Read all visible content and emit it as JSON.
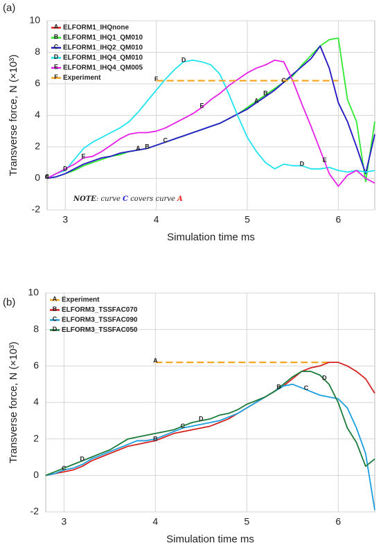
{
  "chart_data": [
    {
      "type": "line",
      "label": "(a)",
      "x_label": "Simulation time ms",
      "y_label": "Transverse force, N (×10³)",
      "xlim": [
        2.8,
        6.4
      ],
      "ylim": [
        -2,
        10
      ],
      "xticks": [
        3,
        4,
        5,
        6
      ],
      "yticks": [
        -2,
        0,
        2,
        4,
        6,
        8,
        10
      ],
      "grid": true,
      "legend": "upper left",
      "note": [
        "NOTE",
        ": curve ",
        "C",
        " covers curve ",
        "A"
      ],
      "x": [
        2.8,
        2.9,
        3.0,
        3.1,
        3.2,
        3.3,
        3.4,
        3.5,
        3.6,
        3.7,
        3.8,
        3.9,
        4.0,
        4.1,
        4.2,
        4.3,
        4.4,
        4.5,
        4.6,
        4.7,
        4.8,
        4.9,
        5.0,
        5.1,
        5.2,
        5.3,
        5.4,
        5.5,
        5.6,
        5.7,
        5.8,
        5.9,
        6.0,
        6.1,
        6.2,
        6.3,
        6.4
      ],
      "series": [
        {
          "name": "ELFORM1_IHQnone",
          "marker": "A",
          "color": "#e8231f",
          "marker_x": [
            2.8,
            3.8,
            5.1
          ],
          "values": [
            0,
            0.1,
            0.3,
            0.6,
            0.9,
            1.1,
            1.3,
            1.4,
            1.6,
            1.7,
            1.8,
            1.9,
            2.1,
            2.3,
            2.5,
            2.7,
            2.9,
            3.1,
            3.3,
            3.5,
            3.8,
            4.1,
            4.4,
            4.8,
            5.2,
            5.6,
            6.1,
            6.6,
            7.1,
            7.6,
            8.4,
            7.0,
            4.8,
            3.6,
            2.0,
            0.3,
            2.8
          ]
        },
        {
          "name": "ELFORM1_IHQ1_QM010",
          "marker": "B",
          "color": "#2ee82e",
          "marker_x": [
            3.9,
            5.2
          ],
          "values": [
            0,
            0.1,
            0.3,
            0.5,
            0.8,
            1.0,
            1.2,
            1.4,
            1.5,
            1.7,
            1.8,
            1.9,
            2.1,
            2.3,
            2.5,
            2.7,
            2.9,
            3.1,
            3.3,
            3.5,
            3.8,
            4.1,
            4.5,
            4.9,
            5.3,
            5.7,
            6.1,
            6.5,
            7.2,
            7.8,
            8.4,
            8.8,
            8.9,
            5.0,
            3.6,
            -0.2,
            3.6
          ]
        },
        {
          "name": "ELFORM1_IHQ2_QM010",
          "marker": "C",
          "color": "#1f1fcf",
          "marker_x": [
            2.8,
            4.1,
            5.4
          ],
          "values": [
            0,
            0.1,
            0.3,
            0.6,
            0.9,
            1.1,
            1.3,
            1.4,
            1.6,
            1.7,
            1.8,
            1.9,
            2.1,
            2.3,
            2.5,
            2.7,
            2.9,
            3.1,
            3.3,
            3.5,
            3.8,
            4.1,
            4.4,
            4.8,
            5.2,
            5.6,
            6.1,
            6.6,
            7.1,
            7.6,
            8.4,
            7.0,
            4.8,
            3.6,
            2.0,
            0.3,
            2.8
          ]
        },
        {
          "name": "ELFORM1_IHQ4_QM010",
          "marker": "D",
          "color": "#1fe4f0",
          "marker_x": [
            3.0,
            4.3,
            5.6
          ],
          "values": [
            0,
            0.3,
            0.5,
            1.2,
            1.9,
            2.3,
            2.6,
            2.9,
            3.2,
            3.6,
            4.2,
            4.9,
            5.6,
            6.3,
            6.9,
            7.4,
            7.5,
            7.4,
            7.2,
            6.6,
            5.3,
            3.9,
            2.6,
            1.7,
            1.0,
            0.6,
            0.9,
            0.8,
            0.8,
            0.6,
            0.6,
            0.7,
            0.5,
            0.4,
            0.5,
            0.4,
            0.5
          ]
        },
        {
          "name": "ELFORM1_IHQ4_QM005",
          "marker": "E",
          "color": "#e81fe8",
          "marker_x": [
            3.2,
            4.5,
            5.85
          ],
          "values": [
            0,
            0.3,
            0.6,
            0.9,
            1.3,
            1.4,
            1.7,
            2.1,
            2.5,
            2.8,
            2.9,
            2.9,
            3.0,
            3.2,
            3.5,
            3.8,
            4.1,
            4.5,
            5.0,
            5.4,
            5.9,
            6.3,
            6.7,
            7.0,
            7.2,
            7.5,
            7.4,
            6.2,
            4.7,
            3.3,
            1.8,
            0.3,
            -0.5,
            0.2,
            0.5,
            0.0,
            -0.3
          ]
        },
        {
          "name": "Experiment",
          "marker": "F",
          "color": "#f5a623",
          "dashed": true,
          "marker_x": [
            4.0
          ],
          "values": [
            null,
            null,
            null,
            null,
            null,
            null,
            null,
            null,
            null,
            null,
            null,
            null,
            6.2,
            6.2,
            6.2,
            6.2,
            6.2,
            6.2,
            6.2,
            6.2,
            6.2,
            6.2,
            6.2,
            6.2,
            6.2,
            6.2,
            6.2,
            6.2,
            6.2,
            6.2,
            6.2,
            6.2,
            6.2,
            null,
            null,
            null,
            null
          ]
        }
      ]
    },
    {
      "type": "line",
      "label": "(b)",
      "x_label": "Simulation time ms",
      "y_label": "Transverse force, N (×10³)",
      "xlim": [
        2.8,
        6.4
      ],
      "ylim": [
        -2,
        10
      ],
      "xticks": [
        3,
        4,
        5,
        6
      ],
      "yticks": [
        -2,
        0,
        2,
        4,
        6,
        8,
        10
      ],
      "grid": true,
      "legend": "upper left",
      "x": [
        2.8,
        2.9,
        3.0,
        3.1,
        3.2,
        3.3,
        3.4,
        3.5,
        3.6,
        3.7,
        3.8,
        3.9,
        4.0,
        4.1,
        4.2,
        4.3,
        4.4,
        4.5,
        4.6,
        4.7,
        4.8,
        4.9,
        5.0,
        5.1,
        5.2,
        5.3,
        5.4,
        5.5,
        5.6,
        5.7,
        5.8,
        5.9,
        6.0,
        6.1,
        6.2,
        6.3,
        6.4
      ],
      "series": [
        {
          "name": "Experiment",
          "marker": "A",
          "color": "#f5a623",
          "dashed": true,
          "marker_x": [
            4.0
          ],
          "values": [
            null,
            null,
            null,
            null,
            null,
            null,
            null,
            null,
            null,
            null,
            null,
            null,
            6.2,
            6.2,
            6.2,
            6.2,
            6.2,
            6.2,
            6.2,
            6.2,
            6.2,
            6.2,
            6.2,
            6.2,
            6.2,
            6.2,
            6.2,
            6.2,
            6.2,
            6.2,
            6.2,
            6.2,
            null,
            null,
            null,
            null,
            null
          ]
        },
        {
          "name": "ELFORM3_TSSFAC070",
          "marker": "B",
          "color": "#d42020",
          "marker_x": [
            4.0,
            5.35
          ],
          "values": [
            0,
            0.1,
            0.2,
            0.3,
            0.5,
            0.8,
            1.0,
            1.2,
            1.4,
            1.6,
            1.7,
            1.8,
            1.9,
            2.1,
            2.3,
            2.4,
            2.5,
            2.6,
            2.7,
            2.9,
            3.1,
            3.4,
            3.7,
            4.0,
            4.3,
            4.6,
            4.9,
            5.3,
            5.7,
            5.9,
            6.0,
            6.2,
            6.2,
            6.0,
            5.7,
            5.3,
            4.5
          ]
        },
        {
          "name": "ELFORM3_TSSFAC090",
          "marker": "C",
          "color": "#1a9ee0",
          "marker_x": [
            3.0,
            4.3,
            5.65
          ],
          "values": [
            0,
            0.1,
            0.3,
            0.4,
            0.6,
            0.9,
            1.1,
            1.3,
            1.5,
            1.7,
            1.9,
            1.9,
            2.0,
            2.2,
            2.4,
            2.6,
            2.7,
            2.8,
            2.9,
            3.0,
            3.2,
            3.4,
            3.7,
            4.0,
            4.3,
            4.6,
            4.9,
            5.0,
            4.8,
            4.6,
            4.4,
            4.3,
            4.2,
            3.7,
            2.6,
            1.2,
            -1.9
          ]
        },
        {
          "name": "ELFORM3_TSSFAC050",
          "marker": "D",
          "color": "#1a7a3a",
          "marker_x": [
            3.2,
            4.5,
            5.85
          ],
          "values": [
            0,
            0.2,
            0.4,
            0.6,
            0.8,
            1.0,
            1.2,
            1.4,
            1.7,
            2.0,
            2.1,
            2.2,
            2.3,
            2.4,
            2.5,
            2.7,
            2.9,
            3.0,
            3.1,
            3.3,
            3.4,
            3.6,
            3.9,
            4.1,
            4.3,
            4.6,
            5.0,
            5.4,
            5.7,
            5.7,
            5.5,
            5.0,
            4.0,
            2.6,
            1.8,
            0.5,
            0.9
          ]
        }
      ]
    }
  ]
}
